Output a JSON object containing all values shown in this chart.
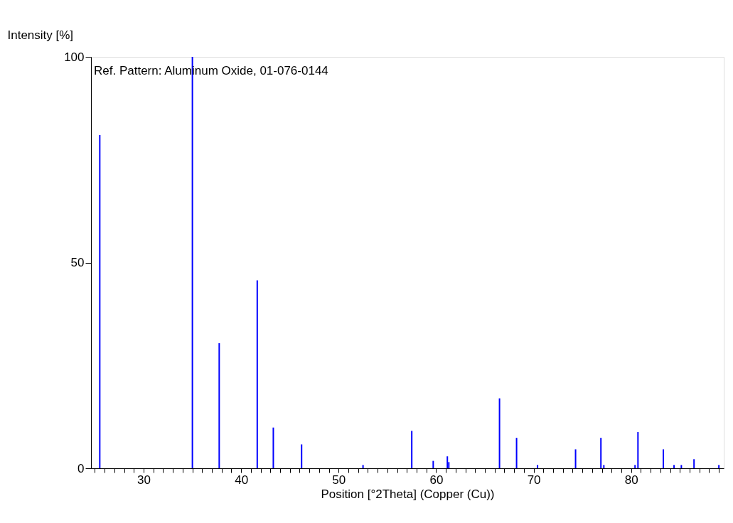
{
  "chart_data": {
    "type": "bar",
    "xlabel": "Position [°2Theta] (Copper (Cu))",
    "ylabel": "Intensity [%]",
    "annotations": [
      "Ref. Pattern: Aluminum Oxide, 01-076-0144"
    ],
    "x": [
      25.5,
      35.0,
      37.75,
      41.65,
      43.3,
      46.2,
      52.5,
      57.5,
      59.7,
      61.15,
      61.3,
      66.5,
      68.25,
      70.4,
      74.3,
      76.9,
      77.2,
      80.4,
      80.7,
      83.3,
      84.4,
      85.15,
      86.45,
      89.0
    ],
    "values": [
      81,
      100,
      30.4,
      45.7,
      9.9,
      5.8,
      0.8,
      9.1,
      1.8,
      2.9,
      1.5,
      17.0,
      7.4,
      0.8,
      4.6,
      7.4,
      0.8,
      0.8,
      8.8,
      4.6,
      0.8,
      0.8,
      2.2,
      0.8
    ],
    "color": "#0000ff",
    "xlim": [
      24.6,
      89.5
    ],
    "xticks": [
      {
        "value": 25,
        "label": null
      },
      {
        "value": 26,
        "label": null
      },
      {
        "value": 27,
        "label": null
      },
      {
        "value": 28,
        "label": null
      },
      {
        "value": 29,
        "label": null
      },
      30,
      {
        "value": 31,
        "label": null
      },
      {
        "value": 32,
        "label": null
      },
      {
        "value": 33,
        "label": null
      },
      {
        "value": 34,
        "label": null
      },
      {
        "value": 35,
        "label": null
      },
      {
        "value": 36,
        "label": null
      },
      {
        "value": 37,
        "label": null
      },
      {
        "value": 38,
        "label": null
      },
      {
        "value": 39,
        "label": null
      },
      40,
      {
        "value": 41,
        "label": null
      },
      {
        "value": 42,
        "label": null
      },
      {
        "value": 43,
        "label": null
      },
      {
        "value": 44,
        "label": null
      },
      {
        "value": 45,
        "label": null
      },
      {
        "value": 46,
        "label": null
      },
      {
        "value": 47,
        "label": null
      },
      {
        "value": 48,
        "label": null
      },
      {
        "value": 49,
        "label": null
      },
      50,
      {
        "value": 51,
        "label": null
      },
      {
        "value": 52,
        "label": null
      },
      {
        "value": 53,
        "label": null
      },
      {
        "value": 54,
        "label": null
      },
      {
        "value": 55,
        "label": null
      },
      {
        "value": 56,
        "label": null
      },
      {
        "value": 57,
        "label": null
      },
      {
        "value": 58,
        "label": null
      },
      {
        "value": 59,
        "label": null
      },
      60,
      {
        "value": 61,
        "label": null
      },
      {
        "value": 62,
        "label": null
      },
      {
        "value": 63,
        "label": null
      },
      {
        "value": 64,
        "label": null
      },
      {
        "value": 65,
        "label": null
      },
      {
        "value": 66,
        "label": null
      },
      {
        "value": 67,
        "label": null
      },
      {
        "value": 68,
        "label": null
      },
      {
        "value": 69,
        "label": null
      },
      70,
      {
        "value": 71,
        "label": null
      },
      {
        "value": 72,
        "label": null
      },
      {
        "value": 73,
        "label": null
      },
      {
        "value": 74,
        "label": null
      },
      {
        "value": 75,
        "label": null
      },
      {
        "value": 76,
        "label": null
      },
      {
        "value": 77,
        "label": null
      },
      {
        "value": 78,
        "label": null
      },
      {
        "value": 79,
        "label": null
      },
      80,
      {
        "value": 81,
        "label": null
      },
      {
        "value": 82,
        "label": null
      },
      {
        "value": 83,
        "label": null
      },
      {
        "value": 84,
        "label": null
      },
      {
        "value": 85,
        "label": null
      },
      {
        "value": 86,
        "label": null
      },
      {
        "value": 87,
        "label": null
      },
      {
        "value": 88,
        "label": null
      },
      {
        "value": 89,
        "label": null
      }
    ],
    "ylim": [
      0,
      100
    ],
    "yticks": [
      0,
      50,
      100
    ],
    "grid": false
  }
}
